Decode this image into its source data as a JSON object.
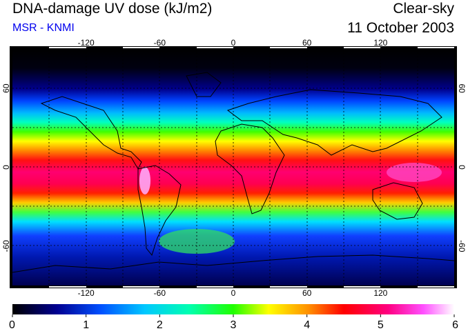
{
  "header": {
    "title": "DNA-damage UV dose (kJ/m2)",
    "subtitle": "MSR - KNMI",
    "condition": "Clear-sky",
    "date": "11 October 2003"
  },
  "map": {
    "projection": "equirectangular",
    "lon_ticks": [
      -120,
      -60,
      0,
      60,
      120
    ],
    "lat_ticks": [
      60,
      0,
      -60
    ],
    "gridlines": "dashed, every 30 degrees",
    "land_outline_color": "#000000"
  },
  "colorbar": {
    "min": 0,
    "max": 6,
    "tick_values": [
      0,
      1,
      2,
      3,
      4,
      5,
      6
    ],
    "colors": [
      "#000000",
      "#000080",
      "#0040ff",
      "#00c0ff",
      "#00ffff",
      "#00ff80",
      "#00ff00",
      "#ffff00",
      "#ff8000",
      "#ff0000",
      "#ff0080",
      "#ff40ff",
      "#ffffff"
    ]
  }
}
